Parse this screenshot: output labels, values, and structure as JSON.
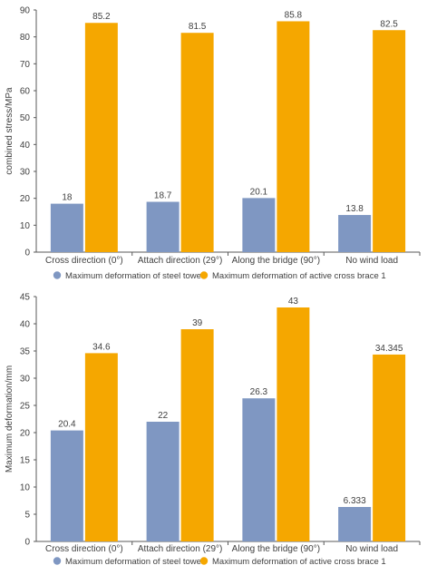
{
  "colors": {
    "steel_tower": "#7f97c2",
    "active_brace": "#f5a700",
    "axis": "#595959",
    "grid": "#d9d9d9",
    "text": "#404040"
  },
  "chart_data": [
    {
      "type": "bar",
      "ylabel": "combined stress/MPa",
      "xlabel": "",
      "ylim": [
        0,
        90
      ],
      "yticks": [
        0,
        10,
        20,
        30,
        40,
        50,
        60,
        70,
        80,
        90
      ],
      "categories": [
        "Cross direction (0°)",
        "Attach direction (29°)",
        "Along the bridge (90°)",
        "No wind load"
      ],
      "series": [
        {
          "name": "Maximum deformation of steel tower",
          "color": "#7f97c2",
          "values": [
            18,
            18.7,
            20.1,
            13.8
          ],
          "labels": [
            "18",
            "18.7",
            "20.1",
            "13.8"
          ]
        },
        {
          "name": "Maximum deformation of active cross brace 1",
          "color": "#f5a700",
          "values": [
            85.2,
            81.5,
            85.8,
            82.5
          ],
          "labels": [
            "85.2",
            "81.5",
            "85.8",
            "82.5"
          ]
        }
      ],
      "legend": "bottom",
      "grid": false
    },
    {
      "type": "bar",
      "ylabel": "Maximum deformation/mm",
      "xlabel": "",
      "ylim": [
        0,
        45
      ],
      "yticks": [
        0,
        5,
        10,
        15,
        20,
        25,
        30,
        35,
        40,
        45
      ],
      "categories": [
        "Cross direction (0°)",
        "Attach direction (29°)",
        "Along the bridge (90°)",
        "No wind load"
      ],
      "series": [
        {
          "name": "Maximum deformation of steel tower",
          "color": "#7f97c2",
          "values": [
            20.4,
            22,
            26.3,
            6.333
          ],
          "labels": [
            "20.4",
            "22",
            "26.3",
            "6.333"
          ]
        },
        {
          "name": "Maximum deformation of active cross brace 1",
          "color": "#f5a700",
          "values": [
            34.6,
            39,
            43,
            34.345
          ],
          "labels": [
            "34.6",
            "39",
            "43",
            "34.345"
          ]
        }
      ],
      "legend": "bottom",
      "grid": false
    }
  ]
}
